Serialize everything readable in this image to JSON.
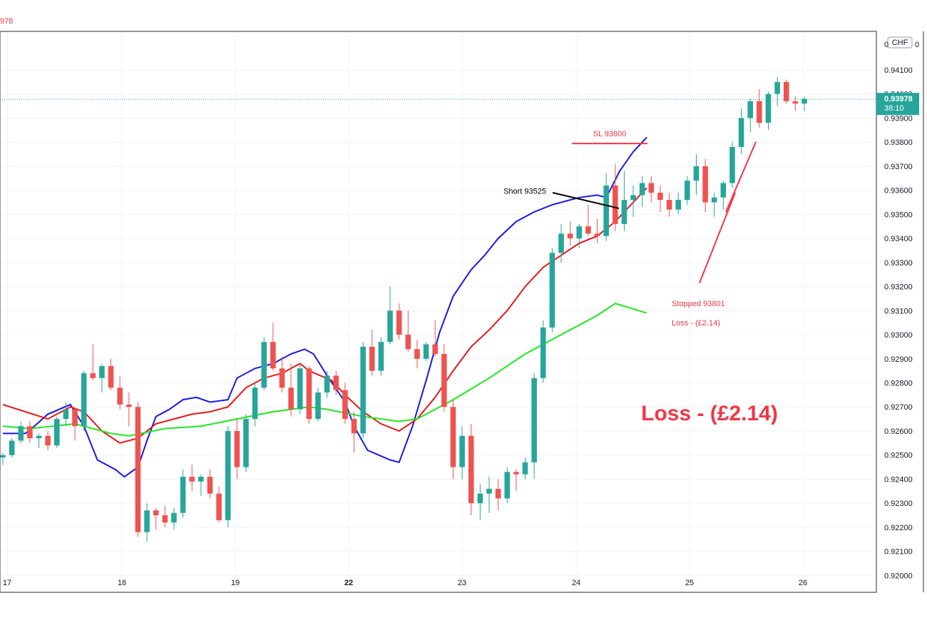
{
  "header": {
    "price_fragment": "978"
  },
  "axis": {
    "currency_badge": "CHF",
    "y_ticks": [
      "0.94100",
      "0.94000",
      "0.93900",
      "0.93800",
      "0.93700",
      "0.93600",
      "0.93500",
      "0.93400",
      "0.93300",
      "0.93200",
      "0.93100",
      "0.93000",
      "0.92900",
      "0.92800",
      "0.92700",
      "0.92600",
      "0.92500",
      "0.92400",
      "0.92300",
      "0.92200",
      "0.92100",
      "0.92000"
    ],
    "top_label_fragment": "0",
    "top_label_fragment_end": "0",
    "price_label": "0.93978",
    "countdown": "38:10"
  },
  "chart_data": {
    "type": "candlestick",
    "x_labels": [
      {
        "x": 17,
        "label": "17",
        "bold": false
      },
      {
        "x": 18,
        "label": "18",
        "bold": false
      },
      {
        "x": 19,
        "label": "19",
        "bold": false
      },
      {
        "x": 22,
        "label": "22",
        "bold": true
      },
      {
        "x": 23,
        "label": "23",
        "bold": false
      },
      {
        "x": 24,
        "label": "24",
        "bold": false
      },
      {
        "x": 25,
        "label": "25",
        "bold": false
      },
      {
        "x": 26,
        "label": "26",
        "bold": false
      }
    ],
    "ylim": [
      0.9193,
      0.9426
    ],
    "current_price": 0.93978,
    "colors": {
      "up": "#26a69a",
      "down": "#ef5350",
      "ma_fast": "#1717e6",
      "ma_mid": "#e61717",
      "ma_slow": "#1fe61f",
      "annotation": "#f23645"
    },
    "moving_averages": [
      {
        "color": "#1717e6",
        "points": [
          [
            0,
            0.9259
          ],
          [
            2.5,
            0.9259
          ],
          [
            3.5,
            0.9262
          ],
          [
            5,
            0.9267
          ],
          [
            7.5,
            0.9271
          ],
          [
            9,
            0.9262
          ],
          [
            10.5,
            0.9248
          ],
          [
            12.5,
            0.9244
          ],
          [
            13.5,
            0.9241
          ],
          [
            15,
            0.9245
          ],
          [
            16,
            0.9256
          ],
          [
            17,
            0.9266
          ],
          [
            18.5,
            0.9269
          ],
          [
            20,
            0.9273
          ],
          [
            21.5,
            0.9274
          ],
          [
            23,
            0.9272
          ],
          [
            25,
            0.9273
          ],
          [
            26,
            0.9282
          ],
          [
            28,
            0.9286
          ],
          [
            30,
            0.9288
          ],
          [
            32,
            0.9292
          ],
          [
            33.5,
            0.9294
          ],
          [
            34.5,
            0.9292
          ],
          [
            36,
            0.9283
          ],
          [
            38,
            0.9272
          ],
          [
            39,
            0.9262
          ],
          [
            40.5,
            0.9252
          ],
          [
            43,
            0.9248
          ],
          [
            44,
            0.9247
          ],
          [
            45.5,
            0.9262
          ],
          [
            47,
            0.9281
          ],
          [
            48.5,
            0.9301
          ],
          [
            50,
            0.9316
          ],
          [
            52,
            0.9327
          ],
          [
            53.5,
            0.9333
          ],
          [
            55,
            0.934
          ],
          [
            57,
            0.9347
          ],
          [
            59,
            0.9351
          ],
          [
            61,
            0.9354
          ],
          [
            63,
            0.9356
          ],
          [
            64,
            0.9357
          ],
          [
            66,
            0.9358
          ],
          [
            67,
            0.9357
          ],
          [
            68.5,
            0.9368
          ],
          [
            70,
            0.9376
          ],
          [
            71,
            0.938
          ],
          [
            71.5,
            0.9382
          ]
        ]
      },
      {
        "color": "#e61717",
        "points": [
          [
            0,
            0.9271
          ],
          [
            2.5,
            0.9268
          ],
          [
            5,
            0.9265
          ],
          [
            7.5,
            0.927
          ],
          [
            9,
            0.9268
          ],
          [
            11,
            0.926
          ],
          [
            13,
            0.9255
          ],
          [
            15,
            0.9257
          ],
          [
            17,
            0.9263
          ],
          [
            19,
            0.9265
          ],
          [
            21,
            0.9267
          ],
          [
            23,
            0.9268
          ],
          [
            25,
            0.927
          ],
          [
            27,
            0.9278
          ],
          [
            29,
            0.9282
          ],
          [
            31,
            0.9284
          ],
          [
            33,
            0.9288
          ],
          [
            34,
            0.9285
          ],
          [
            36.5,
            0.9281
          ],
          [
            38,
            0.9275
          ],
          [
            40,
            0.9268
          ],
          [
            42,
            0.9263
          ],
          [
            44,
            0.926
          ],
          [
            46,
            0.9265
          ],
          [
            48,
            0.9274
          ],
          [
            50,
            0.9285
          ],
          [
            52,
            0.9295
          ],
          [
            54,
            0.9302
          ],
          [
            56,
            0.931
          ],
          [
            58,
            0.932
          ],
          [
            60,
            0.9328
          ],
          [
            62,
            0.9333
          ],
          [
            64,
            0.9338
          ],
          [
            66,
            0.9341
          ],
          [
            67,
            0.9344
          ],
          [
            68,
            0.9347
          ],
          [
            70,
            0.9355
          ],
          [
            71.5,
            0.9361
          ]
        ]
      },
      {
        "color": "#1fe61f",
        "points": [
          [
            0,
            0.9262
          ],
          [
            3,
            0.9261
          ],
          [
            8,
            0.9263
          ],
          [
            12,
            0.9259
          ],
          [
            14,
            0.9258
          ],
          [
            18,
            0.9261
          ],
          [
            22,
            0.9262
          ],
          [
            26,
            0.9265
          ],
          [
            30,
            0.9268
          ],
          [
            34,
            0.927
          ],
          [
            36,
            0.9269
          ],
          [
            40,
            0.9266
          ],
          [
            44,
            0.9264
          ],
          [
            46,
            0.9265
          ],
          [
            50,
            0.9273
          ],
          [
            54,
            0.9282
          ],
          [
            58,
            0.9292
          ],
          [
            62,
            0.93
          ],
          [
            66,
            0.9308
          ],
          [
            68,
            0.9313
          ],
          [
            71.5,
            0.9309
          ]
        ]
      }
    ],
    "candles": [
      [
        0.9249,
        0.9251,
        0.9246,
        0.925
      ],
      [
        0.925,
        0.9257,
        0.9249,
        0.9256
      ],
      [
        0.9256,
        0.9264,
        0.9255,
        0.9262
      ],
      [
        0.9262,
        0.9264,
        0.9255,
        0.9257
      ],
      [
        0.9257,
        0.9259,
        0.9253,
        0.9258
      ],
      [
        0.9258,
        0.926,
        0.9252,
        0.9254
      ],
      [
        0.9254,
        0.9266,
        0.9253,
        0.9265
      ],
      [
        0.9265,
        0.9272,
        0.9262,
        0.9269
      ],
      [
        0.9269,
        0.927,
        0.9256,
        0.9262
      ],
      [
        0.9262,
        0.9285,
        0.926,
        0.9284
      ],
      [
        0.9284,
        0.9296,
        0.9281,
        0.9282
      ],
      [
        0.9282,
        0.9288,
        0.9276,
        0.9287
      ],
      [
        0.9287,
        0.929,
        0.9277,
        0.9278
      ],
      [
        0.9278,
        0.9283,
        0.9269,
        0.9271
      ],
      [
        0.9271,
        0.9276,
        0.9262,
        0.927
      ],
      [
        0.927,
        0.9272,
        0.9216,
        0.9218
      ],
      [
        0.9218,
        0.923,
        0.9214,
        0.9227
      ],
      [
        0.9227,
        0.9228,
        0.9219,
        0.9225
      ],
      [
        0.9225,
        0.9229,
        0.922,
        0.9222
      ],
      [
        0.9222,
        0.9228,
        0.9219,
        0.9226
      ],
      [
        0.9226,
        0.9244,
        0.9224,
        0.9241
      ],
      [
        0.9241,
        0.9246,
        0.9235,
        0.9239
      ],
      [
        0.9239,
        0.9242,
        0.9233,
        0.9241
      ],
      [
        0.9241,
        0.9244,
        0.9232,
        0.9234
      ],
      [
        0.9234,
        0.9237,
        0.9222,
        0.9223
      ],
      [
        0.9223,
        0.9262,
        0.922,
        0.926
      ],
      [
        0.926,
        0.9265,
        0.924,
        0.9245
      ],
      [
        0.9245,
        0.9267,
        0.9243,
        0.9265
      ],
      [
        0.9265,
        0.928,
        0.9262,
        0.9278
      ],
      [
        0.9278,
        0.9299,
        0.9277,
        0.9297
      ],
      [
        0.9297,
        0.9305,
        0.9285,
        0.9286
      ],
      [
        0.9286,
        0.9291,
        0.9276,
        0.9278
      ],
      [
        0.9278,
        0.9288,
        0.9266,
        0.9269
      ],
      [
        0.9269,
        0.9288,
        0.9267,
        0.9286
      ],
      [
        0.9286,
        0.9287,
        0.9263,
        0.9265
      ],
      [
        0.9265,
        0.9278,
        0.9264,
        0.9276
      ],
      [
        0.9276,
        0.9285,
        0.9274,
        0.9283
      ],
      [
        0.9283,
        0.9285,
        0.9275,
        0.9277
      ],
      [
        0.9277,
        0.928,
        0.9263,
        0.9265
      ],
      [
        0.9265,
        0.9268,
        0.9251,
        0.9259
      ],
      [
        0.9259,
        0.9297,
        0.9257,
        0.9295
      ],
      [
        0.9295,
        0.9302,
        0.9283,
        0.9285
      ],
      [
        0.9285,
        0.9299,
        0.9283,
        0.9297
      ],
      [
        0.9297,
        0.932,
        0.9296,
        0.931
      ],
      [
        0.931,
        0.9313,
        0.9298,
        0.93
      ],
      [
        0.93,
        0.931,
        0.9293,
        0.9294
      ],
      [
        0.9294,
        0.9298,
        0.9286,
        0.929
      ],
      [
        0.929,
        0.9297,
        0.9289,
        0.9296
      ],
      [
        0.9296,
        0.9306,
        0.9291,
        0.9292
      ],
      [
        0.9292,
        0.9296,
        0.9268,
        0.927
      ],
      [
        0.927,
        0.9273,
        0.924,
        0.9245
      ],
      [
        0.9245,
        0.9262,
        0.924,
        0.9258
      ],
      [
        0.9258,
        0.9263,
        0.9225,
        0.923
      ],
      [
        0.923,
        0.9238,
        0.9223,
        0.9234
      ],
      [
        0.9234,
        0.9241,
        0.9226,
        0.9236
      ],
      [
        0.9236,
        0.924,
        0.9227,
        0.9232
      ],
      [
        0.9232,
        0.9245,
        0.923,
        0.9243
      ],
      [
        0.9243,
        0.9244,
        0.9235,
        0.9242
      ],
      [
        0.9242,
        0.9249,
        0.924,
        0.9247
      ],
      [
        0.9247,
        0.9284,
        0.924,
        0.9282
      ],
      [
        0.9282,
        0.9306,
        0.928,
        0.9303
      ],
      [
        0.9303,
        0.9336,
        0.9301,
        0.9334
      ],
      [
        0.9334,
        0.9346,
        0.933,
        0.9342
      ],
      [
        0.9342,
        0.9347,
        0.9337,
        0.934
      ],
      [
        0.934,
        0.9346,
        0.9336,
        0.9345
      ],
      [
        0.9345,
        0.9354,
        0.9341,
        0.9342
      ],
      [
        0.9342,
        0.9348,
        0.9338,
        0.9341
      ],
      [
        0.9341,
        0.9367,
        0.9339,
        0.9362
      ],
      [
        0.9362,
        0.9371,
        0.9343,
        0.9346
      ],
      [
        0.9346,
        0.9368,
        0.9343,
        0.9356
      ],
      [
        0.9356,
        0.9362,
        0.9349,
        0.9358
      ],
      [
        0.9358,
        0.9366,
        0.9353,
        0.9363
      ],
      [
        0.9363,
        0.9366,
        0.9355,
        0.9359
      ],
      [
        0.9359,
        0.9362,
        0.9351,
        0.9356
      ],
      [
        0.9356,
        0.9359,
        0.9349,
        0.9352
      ],
      [
        0.9352,
        0.9359,
        0.935,
        0.9356
      ],
      [
        0.9356,
        0.9366,
        0.9354,
        0.9364
      ],
      [
        0.9364,
        0.9375,
        0.9358,
        0.937
      ],
      [
        0.937,
        0.9373,
        0.9351,
        0.9355
      ],
      [
        0.9355,
        0.9359,
        0.9349,
        0.9357
      ],
      [
        0.9357,
        0.9364,
        0.9352,
        0.9363
      ],
      [
        0.9363,
        0.938,
        0.9361,
        0.9378
      ],
      [
        0.9378,
        0.9394,
        0.9375,
        0.939
      ],
      [
        0.939,
        0.9398,
        0.9384,
        0.9397
      ],
      [
        0.9397,
        0.9402,
        0.9386,
        0.9388
      ],
      [
        0.9388,
        0.9401,
        0.9385,
        0.94
      ],
      [
        0.94,
        0.9407,
        0.9395,
        0.9405
      ],
      [
        0.9405,
        0.9406,
        0.9396,
        0.9397
      ],
      [
        0.9397,
        0.9399,
        0.9393,
        0.9396
      ],
      [
        0.9396,
        0.9399,
        0.9393,
        0.9398
      ]
    ],
    "annotations": {
      "sl_label": "SL 93800",
      "sl_level": 0.938,
      "short_label": "Short 93525",
      "stopped_label_1": "Stopped 93801",
      "stopped_label_2": "Loss - (£2.14)",
      "big_label": "Loss - (£2.14)"
    }
  }
}
